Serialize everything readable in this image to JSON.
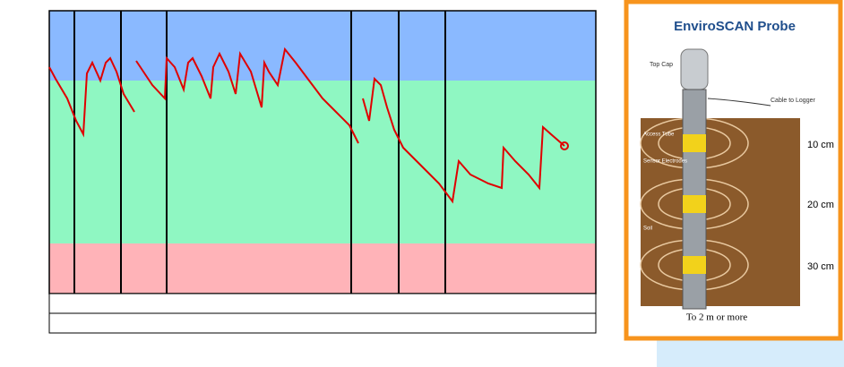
{
  "chart_data": {
    "type": "line",
    "xlim": [
      0,
      610
    ],
    "ylim": [
      0,
      316
    ],
    "bands": [
      {
        "color": "#8ab9ff",
        "from": 238,
        "to": 316
      },
      {
        "color": "#8ff7c2",
        "from": 56,
        "to": 238
      },
      {
        "color": "#ffb3b8",
        "from": 0,
        "to": 56
      }
    ],
    "vlines": [
      28,
      80,
      131,
      337,
      390,
      442
    ],
    "series": [
      {
        "color": "#e00000",
        "x": [
          0,
          7,
          20,
          30,
          38,
          42,
          48,
          57,
          63,
          68,
          75,
          83,
          95,
          null,
          97,
          105,
          115,
          129,
          131,
          140,
          150,
          155,
          160,
          170,
          180,
          183,
          190,
          200,
          208,
          213,
          225,
          237,
          240,
          245,
          255,
          263,
          267,
          275,
          290,
          305,
          320,
          335,
          345,
          null,
          350,
          357,
          363,
          370,
          377,
          385,
          395,
          415,
          435,
          450,
          457,
          470,
          490,
          505,
          507,
          520,
          535,
          547,
          551,
          560,
          575
        ],
        "values": [
          253,
          240,
          218,
          193,
          178,
          246,
          258,
          238,
          258,
          263,
          248,
          223,
          203,
          null,
          260,
          248,
          233,
          218,
          263,
          253,
          228,
          258,
          263,
          243,
          218,
          253,
          268,
          248,
          223,
          268,
          248,
          208,
          258,
          248,
          233,
          273,
          268,
          258,
          238,
          218,
          203,
          188,
          168,
          null,
          218,
          193,
          240,
          233,
          208,
          183,
          163,
          143,
          123,
          103,
          148,
          133,
          123,
          118,
          163,
          148,
          133,
          118,
          186,
          178,
          165
        ]
      }
    ]
  },
  "probe": {
    "title": "EnviroSCAN Probe",
    "callouts": [
      "Top Cap",
      "Cable to Logger",
      "Access Tube",
      "Sensor Electrodes",
      "Soil"
    ],
    "depth_labels": [
      "10 cm",
      "20 cm",
      "30 cm"
    ],
    "bottom_label": "To 2 m or more"
  }
}
